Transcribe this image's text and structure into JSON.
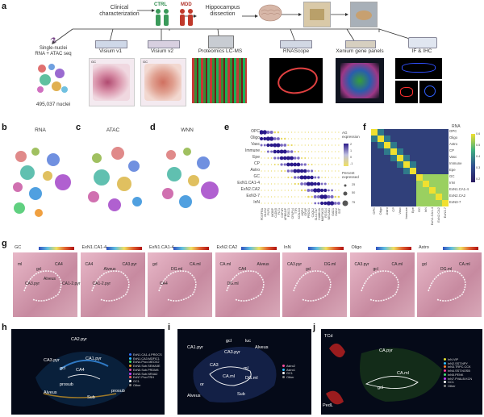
{
  "panel_letters": {
    "a": "a",
    "b": "b",
    "c": "c",
    "d": "d",
    "e": "e",
    "f": "f",
    "g": "g",
    "h": "h",
    "i": "i",
    "j": "j"
  },
  "panel_a": {
    "clinical": "Clinical\ncharacterization",
    "ctrl": "CTRL",
    "mdd": "MDD",
    "dissection": "Hippocampus\ndissection",
    "branches": [
      "Single-nuclei\nRNA + ATAC seq",
      "Visium v1",
      "Visium v2",
      "Proteomics LC-MS",
      "RNAScope",
      "Xenium gene panels",
      "IF & IHC"
    ],
    "nuclei": "495,037 nuclei",
    "visium_v1_label": "GC",
    "visium_v2_label": "GC"
  },
  "umaps": [
    {
      "title": "RNA"
    },
    {
      "title": "ATAC"
    },
    {
      "title": "WNN"
    }
  ],
  "panel_e": {
    "rows": [
      "OPC",
      "Oligo",
      "Vasc",
      "Immune",
      "Epe",
      "CP",
      "Astro",
      "GC",
      "ExN1.CA1-4",
      "ExN2.CA2",
      "ExN3-7",
      "InN"
    ],
    "genes": [
      "PDGFRA",
      "OLIG2",
      "PLP1",
      "MOBP",
      "CLDN5",
      "FLT1",
      "CSF1R",
      "APBB1IP",
      "FOXJ1",
      "CFAP44",
      "TTR",
      "KCNJ13",
      "AQP4",
      "GFAP",
      "PROX1",
      "C1QL2",
      "SLC17A7",
      "CAMK2A",
      "MAP3K15",
      "RGS14",
      "NECAB1",
      "GAD1",
      "GAD2",
      "SST"
    ],
    "legend_title": "AG\nexpression",
    "scale_ticks": [
      "2",
      "1",
      "0",
      "-1"
    ],
    "size_title": "Percent\nexpressed",
    "size_ticks": [
      "25",
      "50",
      "75"
    ]
  },
  "panel_f": {
    "title": "RNA",
    "rows": [
      "OPC",
      "Oligo",
      "Astro",
      "CP",
      "Vasc",
      "Immune",
      "Epe",
      "GC",
      "InN",
      "ExN1.CA1-4",
      "ExN2.CA2",
      "ExN3-7"
    ],
    "cols": [
      "OPC",
      "Oligo",
      "Astro",
      "CP",
      "Vasc",
      "Immune",
      "Epe",
      "GC",
      "InN",
      "ExN1.CA1-4",
      "ExN2.CA2",
      "ExN3-7"
    ],
    "scale_ticks": [
      "0.6",
      "0.5",
      "0.4",
      "0.3",
      "0.2"
    ]
  },
  "panel_g": {
    "slides": [
      {
        "title": "GC",
        "labels": [
          "ml",
          "gcl",
          "CA4",
          "CA3.pyr",
          "Alveus",
          "CA1-2.pyr"
        ]
      },
      {
        "title": "ExN1.CA1-4",
        "labels": [
          "CA4",
          "Alveus",
          "CA3.pyr",
          "CA1-2.pyr"
        ]
      },
      {
        "title": "ExN1.CA1-4",
        "labels": [
          "gcl",
          "DG.ml",
          "CA.ml",
          "CA4"
        ]
      },
      {
        "title": "ExN2.CA2",
        "labels": [
          "CA.ml",
          "CA4",
          "Alveus",
          "DG.ml"
        ]
      },
      {
        "title": "InN",
        "labels": [
          "CA3.pyr",
          "gcl",
          "DG.ml"
        ]
      },
      {
        "title": "Oligo",
        "labels": [
          "CA3.pyr",
          "gcl",
          "CA.ml"
        ]
      },
      {
        "title": "Astro",
        "labels": [
          "gcl",
          "DG.ml",
          "CA.ml"
        ]
      }
    ]
  },
  "panel_h": {
    "labels": [
      "CA2.pyr",
      "CA3.pyr",
      "CA1.pyr",
      "gcl",
      "CA4",
      "Alveus",
      "Sub",
      "prosub",
      "prosub"
    ],
    "legend": [
      "ExN1.CA1-4.PROCS",
      "ExN1.CA3.MDFIC1",
      "ExN4.Prox.MEOX2",
      "ExN5.Sub.SEMA3E",
      "ExN5.Sub.PRDM8",
      "ExN5.Sub.NR4A2",
      "ExN7.ProxTRH",
      "GC1",
      "Other"
    ]
  },
  "panel_i": {
    "labels": [
      "CA1.pyr",
      "gcl",
      "luc",
      "Alveus",
      "CA3.pyr",
      "CA.ml",
      "or",
      "Alveus",
      "Sub",
      "ml",
      "CA3",
      "DG.ml"
    ],
    "legend": [
      "Astro2",
      "Astro1",
      "GC1",
      "Other"
    ]
  },
  "panel_j": {
    "labels": [
      "TCd",
      "CA.pyr",
      "CA.ml",
      "gcl",
      "PedL"
    ],
    "legend": [
      "InN.VIP",
      "InN2.SST.NPY",
      "InN3.TRPC.CCK",
      "InN4.SST.NOSB",
      "InN5.PENK",
      "InN7.PVALB.KCN",
      "GC1",
      "Other"
    ]
  },
  "colors": {
    "accent_red": "#c0392b",
    "accent_green": "#3a9a5a",
    "dark_bg": "#050a18"
  }
}
